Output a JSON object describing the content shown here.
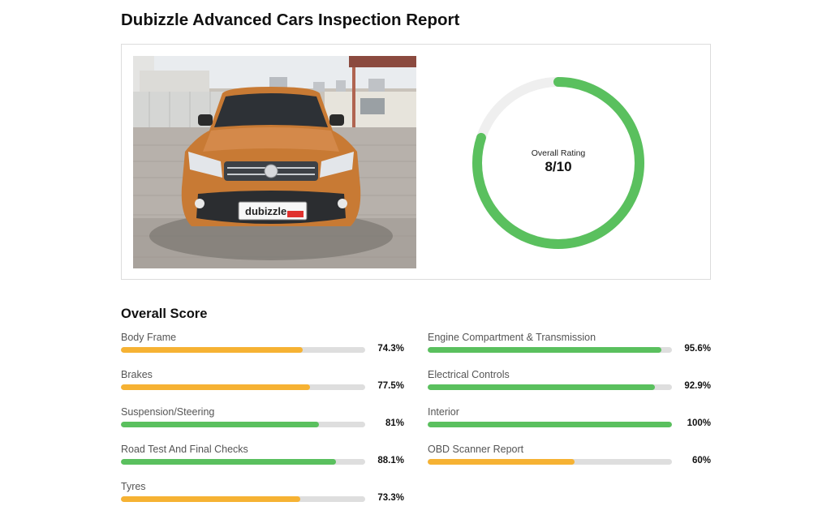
{
  "page": {
    "title": "Dubizzle Advanced Cars Inspection Report"
  },
  "photo": {
    "plate_text": "dubizzle",
    "plate_badge": "CARS"
  },
  "rating": {
    "caption": "Overall Rating",
    "value_text": "8/10",
    "fraction": 0.8,
    "ring_color": "#5ac05e",
    "track_color": "#efefef"
  },
  "colors": {
    "good": "#5ac05e",
    "warn": "#f6b233",
    "track": "#dedede"
  },
  "overall_score": {
    "title": "Overall Score",
    "items": [
      {
        "label": "Body Frame",
        "value_text": "74.3%",
        "percent": 74.3,
        "color": "#f6b233"
      },
      {
        "label": "Brakes",
        "value_text": "77.5%",
        "percent": 77.5,
        "color": "#f6b233"
      },
      {
        "label": "Suspension/Steering",
        "value_text": "81%",
        "percent": 81,
        "color": "#5ac05e"
      },
      {
        "label": "Road Test And Final Checks",
        "value_text": "88.1%",
        "percent": 88.1,
        "color": "#5ac05e"
      },
      {
        "label": "Tyres",
        "value_text": "73.3%",
        "percent": 73.3,
        "color": "#f6b233"
      },
      {
        "label": "Engine Compartment & Transmission",
        "value_text": "95.6%",
        "percent": 95.6,
        "color": "#5ac05e"
      },
      {
        "label": "Electrical Controls",
        "value_text": "92.9%",
        "percent": 92.9,
        "color": "#5ac05e"
      },
      {
        "label": "Interior",
        "value_text": "100%",
        "percent": 100,
        "color": "#5ac05e"
      },
      {
        "label": "OBD Scanner Report",
        "value_text": "60%",
        "percent": 60,
        "color": "#f6b233"
      }
    ]
  }
}
